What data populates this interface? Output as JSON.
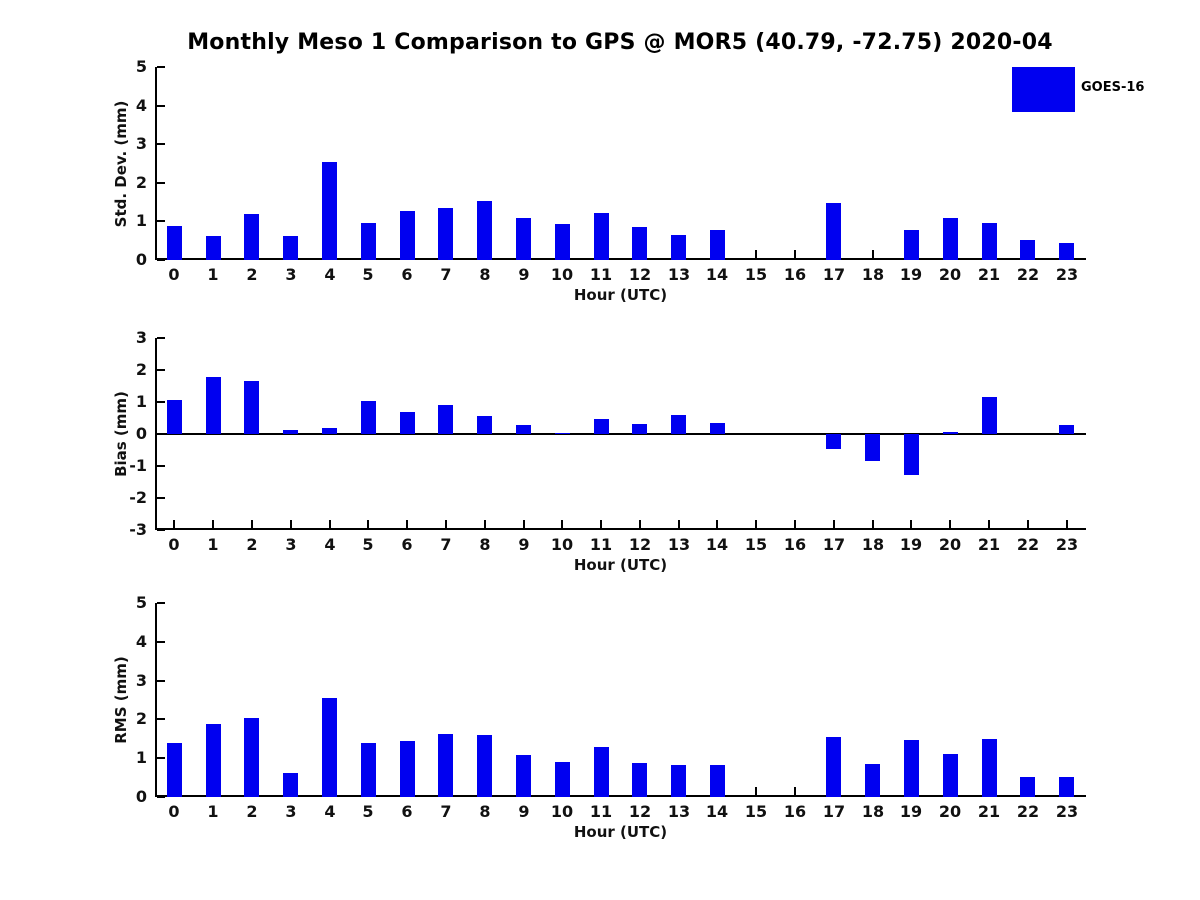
{
  "title": "Monthly Meso 1 Comparison to GPS @ MOR5 (40.79, -72.75) 2020-04",
  "legend": {
    "label": "GOES-16",
    "swatch_color": "#0000f0"
  },
  "colors": {
    "bar": "#0000f0",
    "axis": "#000000",
    "text": "#111111",
    "background": "#ffffff"
  },
  "chart_data": [
    {
      "type": "bar",
      "title": "",
      "ylabel": "Std. Dev. (mm)",
      "xlabel": "Hour (UTC)",
      "ylim": [
        0,
        5
      ],
      "yticks": [
        "0",
        "1",
        "2",
        "3",
        "4",
        "5"
      ],
      "ytick_values": [
        0,
        1,
        2,
        3,
        4,
        5
      ],
      "categories": [
        "0",
        "1",
        "2",
        "3",
        "4",
        "5",
        "6",
        "7",
        "8",
        "9",
        "10",
        "11",
        "12",
        "13",
        "14",
        "15",
        "16",
        "17",
        "18",
        "19",
        "20",
        "21",
        "22",
        "23"
      ],
      "values": [
        0.88,
        0.62,
        1.18,
        0.62,
        2.53,
        0.97,
        1.28,
        1.35,
        1.52,
        1.08,
        0.92,
        1.21,
        0.86,
        0.65,
        0.77,
        0,
        0,
        1.48,
        0,
        0.77,
        1.1,
        0.95,
        0.53,
        0.45
      ],
      "missing_hours": [
        15,
        16,
        18
      ],
      "legend_entries": [
        "GOES-16"
      ],
      "grid": false,
      "legend_position": "top-right-outside"
    },
    {
      "type": "bar",
      "title": "",
      "ylabel": "Bias (mm)",
      "xlabel": "Hour (UTC)",
      "ylim": [
        -3,
        3
      ],
      "yticks": [
        "-3",
        "-2",
        "-1",
        "0",
        "1",
        "2",
        "3"
      ],
      "ytick_values": [
        -3,
        -2,
        -1,
        0,
        1,
        2,
        3
      ],
      "categories": [
        "0",
        "1",
        "2",
        "3",
        "4",
        "5",
        "6",
        "7",
        "8",
        "9",
        "10",
        "11",
        "12",
        "13",
        "14",
        "15",
        "16",
        "17",
        "18",
        "19",
        "20",
        "21",
        "22",
        "23"
      ],
      "values": [
        1.05,
        1.78,
        1.65,
        0.13,
        0.2,
        1.03,
        0.7,
        0.92,
        0.55,
        0.27,
        0.02,
        0.48,
        0.3,
        0.58,
        0.33,
        0,
        0,
        -0.48,
        -0.85,
        -1.27,
        0.05,
        1.15,
        0,
        0.27
      ],
      "missing_hours": [
        15,
        16,
        22
      ],
      "grid": false,
      "zero_line": true
    },
    {
      "type": "bar",
      "title": "",
      "ylabel": "RMS (mm)",
      "xlabel": "Hour (UTC)",
      "ylim": [
        0,
        5
      ],
      "yticks": [
        "0",
        "1",
        "2",
        "3",
        "4",
        "5"
      ],
      "ytick_values": [
        0,
        1,
        2,
        3,
        4,
        5
      ],
      "categories": [
        "0",
        "1",
        "2",
        "3",
        "4",
        "5",
        "6",
        "7",
        "8",
        "9",
        "10",
        "11",
        "12",
        "13",
        "14",
        "15",
        "16",
        "17",
        "18",
        "19",
        "20",
        "21",
        "22",
        "23"
      ],
      "values": [
        1.38,
        1.87,
        2.03,
        0.62,
        2.55,
        1.4,
        1.45,
        1.63,
        1.6,
        1.08,
        0.91,
        1.3,
        0.88,
        0.82,
        0.82,
        0,
        0,
        1.55,
        0.85,
        1.48,
        1.1,
        1.5,
        0.52,
        0.52
      ],
      "missing_hours": [
        15,
        16
      ],
      "grid": false
    }
  ]
}
